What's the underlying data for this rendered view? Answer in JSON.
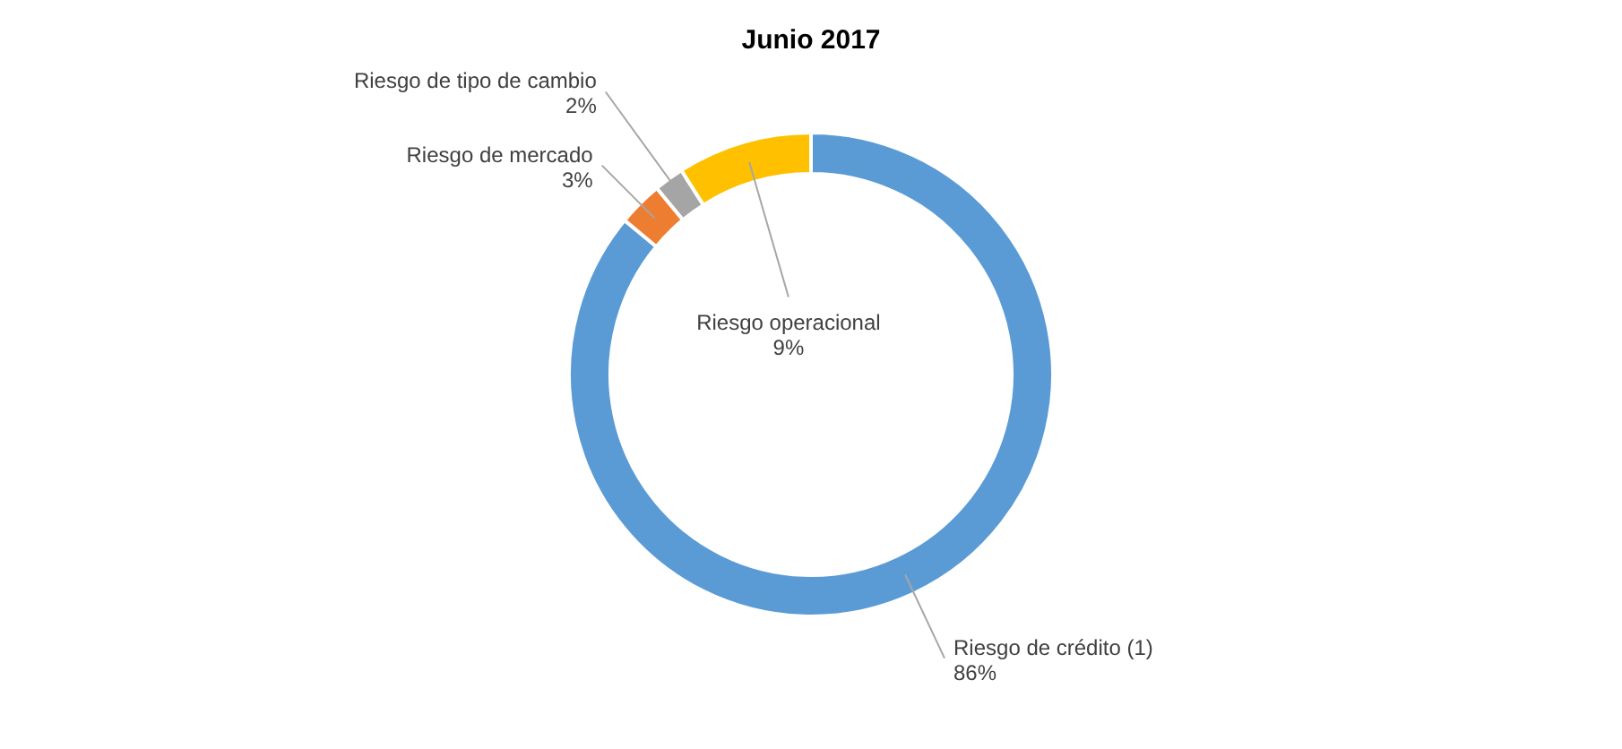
{
  "chart_data": {
    "type": "donut",
    "title": "Junio 2017",
    "categories": [
      "Riesgo de crédito (1)",
      "Riesgo de mercado",
      "Riesgo de tipo de cambio",
      "Riesgo operacional"
    ],
    "values": [
      86,
      3,
      2,
      9
    ],
    "colors": [
      "#5b9bd5",
      "#ed7d31",
      "#a5a5a5",
      "#ffc000"
    ],
    "value_labels": [
      "86%",
      "3%",
      "2%",
      "9%"
    ]
  }
}
